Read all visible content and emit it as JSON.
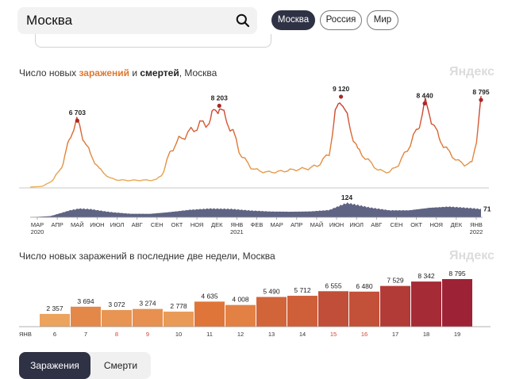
{
  "search": {
    "value": "Москва"
  },
  "region_tabs": [
    {
      "label": "Москва",
      "active": true
    },
    {
      "label": "Россия",
      "active": false
    },
    {
      "label": "Мир",
      "active": false
    }
  ],
  "watermark": "Яндекс",
  "colors": {
    "infections_low": "#e9b15b",
    "infections_high": "#c42e2e",
    "deaths": "#51577a",
    "active_pill": "#2f3245"
  },
  "top_chart": {
    "title_prefix": "Число новых ",
    "title_infections": "заражений",
    "title_and": " и ",
    "title_deaths": "смертей",
    "title_suffix": ", Москва"
  },
  "bottom_chart": {
    "title": "Число новых заражений в последние две недели, Москва"
  },
  "toggle": {
    "infections_label": "Заражения",
    "deaths_label": "Смерти"
  },
  "chart_data": [
    {
      "type": "line",
      "title": "Число новых заражений и смертей, Москва",
      "x_tick_labels": [
        "МАР\n2020",
        "АПР",
        "МАЙ",
        "ИЮН",
        "ИЮЛ",
        "АВГ",
        "СЕН",
        "ОКТ",
        "НОЯ",
        "ДЕК",
        "ЯНВ\n2021",
        "ФЕВ",
        "МАР",
        "АПР",
        "МАЙ",
        "ИЮН",
        "ИЮЛ",
        "АВГ",
        "СЕН",
        "ОКТ",
        "НОЯ",
        "ДЕК",
        "ЯНВ\n2022"
      ],
      "series": [
        {
          "x": [
            "2020-03-01",
            "2020-03-20",
            "2020-04-05",
            "2020-04-20",
            "2020-05-01",
            "2020-05-07",
            "2020-05-12",
            "2020-05-20",
            "2020-06-01",
            "2020-06-15",
            "2020-07-01",
            "2020-07-15",
            "2020-08-01",
            "2020-08-15",
            "2020-09-01",
            "2020-09-10",
            "2020-09-20",
            "2020-10-01",
            "2020-10-15",
            "2020-11-01",
            "2020-11-15",
            "2020-12-01",
            "2020-12-06",
            "2020-12-15",
            "2020-12-25",
            "2021-01-05",
            "2021-01-15",
            "2021-02-01",
            "2021-02-15",
            "2021-03-01",
            "2021-03-15",
            "2021-04-01",
            "2021-04-15",
            "2021-05-01",
            "2021-05-15",
            "2021-06-01",
            "2021-06-10",
            "2021-06-19",
            "2021-06-25",
            "2021-07-05",
            "2021-07-15",
            "2021-08-01",
            "2021-08-15",
            "2021-09-01",
            "2021-09-15",
            "2021-10-01",
            "2021-10-15",
            "2021-10-25",
            "2021-11-01",
            "2021-11-15",
            "2021-12-01",
            "2021-12-15",
            "2021-12-25",
            "2022-01-05",
            "2022-01-12",
            "2022-01-19"
          ],
          "y": [
            5,
            80,
            700,
            2300,
            5100,
            6100,
            6703,
            5200,
            3300,
            1800,
            900,
            700,
            680,
            690,
            700,
            750,
            1400,
            3600,
            4800,
            5600,
            6300,
            6600,
            7500,
            8203,
            6800,
            5600,
            3500,
            2000,
            1600,
            1500,
            1550,
            1700,
            1800,
            1900,
            2200,
            3400,
            7200,
            9120,
            7700,
            5500,
            3700,
            2600,
            1700,
            1500,
            2300,
            4100,
            6000,
            8440,
            7500,
            5000,
            3500,
            2600,
            2300,
            2400,
            4800,
            8795
          ],
          "peaks": [
            {
              "x": "2020-05-12",
              "label": "6 703"
            },
            {
              "x": "2020-12-15",
              "label": "8 203"
            },
            {
              "x": "2021-06-19",
              "label": "9 120"
            },
            {
              "x": "2021-10-25",
              "label": "8 440"
            },
            {
              "x": "2022-01-19",
              "label": "8 795"
            }
          ]
        },
        {
          "x": [
            "2020-03-01",
            "2020-04-01",
            "2020-05-01",
            "2020-05-15",
            "2020-06-01",
            "2020-07-01",
            "2020-08-01",
            "2020-09-01",
            "2020-10-01",
            "2020-11-01",
            "2020-12-01",
            "2021-01-01",
            "2021-02-01",
            "2021-03-01",
            "2021-04-01",
            "2021-05-01",
            "2021-06-01",
            "2021-06-15",
            "2021-06-28",
            "2021-07-15",
            "2021-08-01",
            "2021-09-01",
            "2021-10-01",
            "2021-11-01",
            "2021-12-01",
            "2022-01-01",
            "2022-01-19"
          ],
          "y": [
            0,
            10,
            60,
            75,
            70,
            45,
            30,
            30,
            45,
            65,
            75,
            72,
            58,
            50,
            48,
            50,
            62,
            95,
            124,
            105,
            85,
            60,
            60,
            82,
            92,
            80,
            71
          ],
          "labels": [
            {
              "x": "2021-06-28",
              "label": "124"
            },
            {
              "x": "2022-01-19",
              "label": "71"
            }
          ]
        }
      ]
    },
    {
      "type": "bar",
      "title": "Число новых заражений в последние две недели, Москва",
      "month_label": "ЯНВ",
      "categories": [
        "6",
        "7",
        "8",
        "9",
        "10",
        "11",
        "12",
        "13",
        "14",
        "15",
        "16",
        "17",
        "18",
        "19"
      ],
      "weekend": [
        false,
        false,
        true,
        true,
        false,
        false,
        false,
        false,
        false,
        true,
        true,
        false,
        false,
        false
      ],
      "values": [
        2357,
        3694,
        3072,
        3274,
        2778,
        4635,
        4008,
        5490,
        5712,
        6555,
        6480,
        7529,
        8342,
        8795
      ],
      "value_labels": [
        "2 357",
        "3 694",
        "3 072",
        "3 274",
        "2 778",
        "4 635",
        "4 008",
        "5 490",
        "5 712",
        "6 555",
        "6 480",
        "7 529",
        "8 342",
        "8 795"
      ]
    }
  ]
}
